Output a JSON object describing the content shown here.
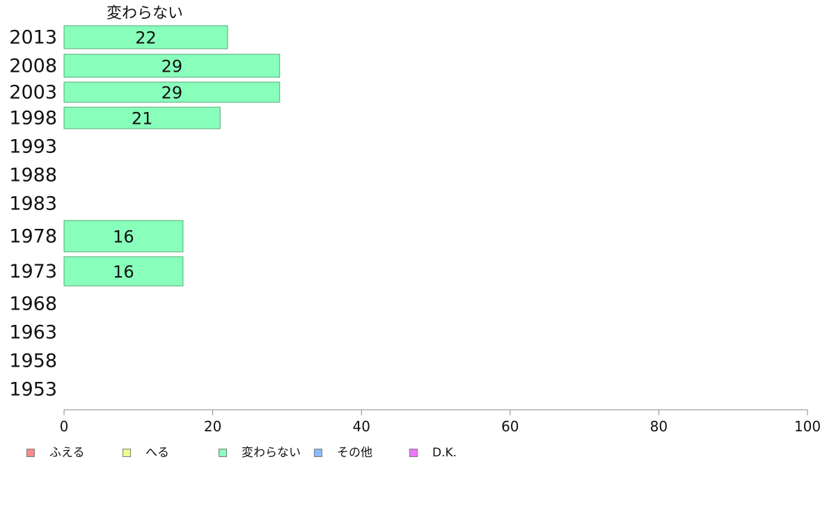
{
  "chart_data": {
    "type": "bar",
    "orientation": "horizontal",
    "series_header": "変わらない",
    "categories": [
      "2013",
      "2008",
      "2003",
      "1998",
      "1993",
      "1988",
      "1983",
      "1978",
      "1973",
      "1968",
      "1963",
      "1958",
      "1953"
    ],
    "series": [
      {
        "name": "変わらない",
        "values": [
          22,
          29,
          29,
          21,
          null,
          null,
          null,
          16,
          16,
          null,
          null,
          null,
          null
        ]
      }
    ],
    "data_labels": [
      "22",
      "29",
      "29",
      "21",
      "",
      "",
      "",
      "16",
      "16",
      "",
      "",
      "",
      ""
    ],
    "xlim": [
      0,
      100
    ],
    "xticks": [
      0,
      20,
      40,
      60,
      80,
      100
    ],
    "bar_color": "#88ffbb",
    "bar_border": "#55aa77",
    "legend": {
      "placement": "bottom-left",
      "items": [
        {
          "label": "ふえる",
          "color": "#ff8888"
        },
        {
          "label": "へる",
          "color": "#eeff88"
        },
        {
          "label": "変わらない",
          "color": "#88ffbb"
        },
        {
          "label": "その他",
          "color": "#88bbff"
        },
        {
          "label": "D.K.",
          "color": "#ee77ff"
        }
      ]
    }
  }
}
